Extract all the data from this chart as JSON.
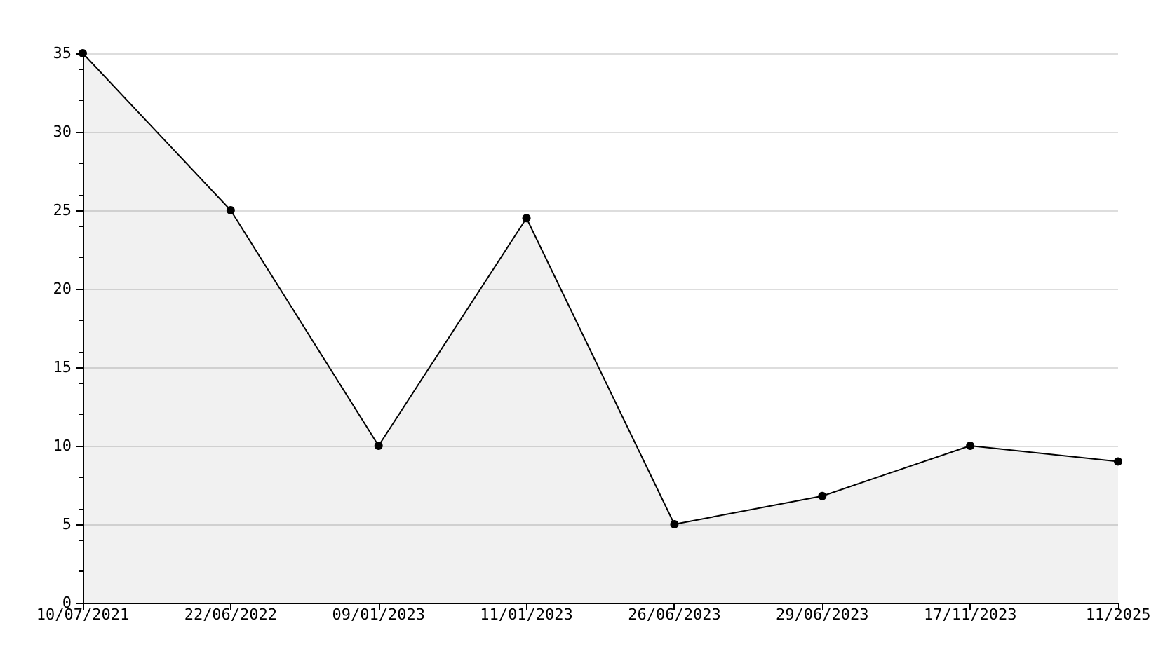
{
  "chart_data": {
    "type": "area",
    "categories": [
      "10/07/2021",
      "22/06/2022",
      "09/01/2023",
      "11/01/2023",
      "26/06/2023",
      "29/06/2023",
      "17/11/2023",
      "11/2025"
    ],
    "series": [
      {
        "color": "#000000",
        "values": [
          35,
          25,
          10,
          24.5,
          5,
          6.8,
          10,
          9
        ]
      }
    ],
    "ylim": [
      0,
      35
    ],
    "yticks": [
      0,
      5,
      10,
      15,
      20,
      25,
      30,
      35
    ],
    "grid": "y",
    "marker": "circle",
    "line_style": "solid"
  }
}
